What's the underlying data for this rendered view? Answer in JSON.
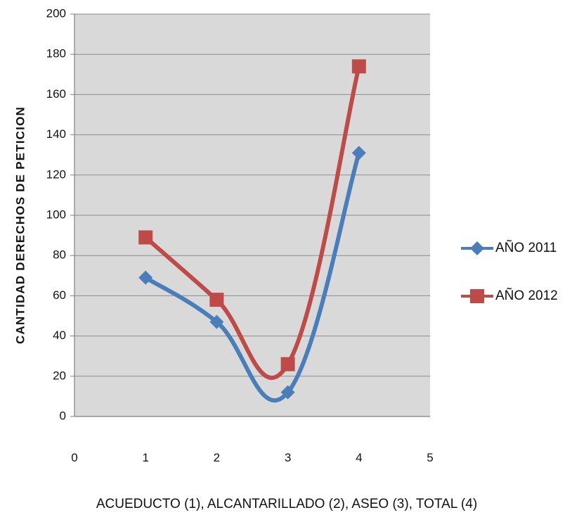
{
  "chart_data": {
    "type": "line",
    "ylabel": "CANTIDAD DERECHOS  DE PETICION",
    "xlabel": "ACUEDUCTO (1), ALCANTARILLADO (2), ASEO (3), TOTAL (4)",
    "xlim": [
      0,
      5
    ],
    "ylim": [
      0,
      200
    ],
    "x_ticks": [
      "0",
      "1",
      "2",
      "3",
      "4",
      "5"
    ],
    "y_ticks": [
      "0",
      "20",
      "40",
      "60",
      "80",
      "100",
      "120",
      "140",
      "160",
      "180",
      "200"
    ],
    "grid": "horizontal",
    "legend_position": "right",
    "smoothed": true,
    "series": [
      {
        "name": "AÑO 2011",
        "color": "#4a7ebb",
        "marker": "diamond",
        "x": [
          1,
          2,
          3,
          4
        ],
        "values": [
          69,
          47,
          12,
          131
        ]
      },
      {
        "name": "AÑO 2012",
        "color": "#be4b48",
        "marker": "square",
        "x": [
          1,
          2,
          3,
          4
        ],
        "values": [
          89,
          58,
          26,
          174
        ]
      }
    ]
  }
}
